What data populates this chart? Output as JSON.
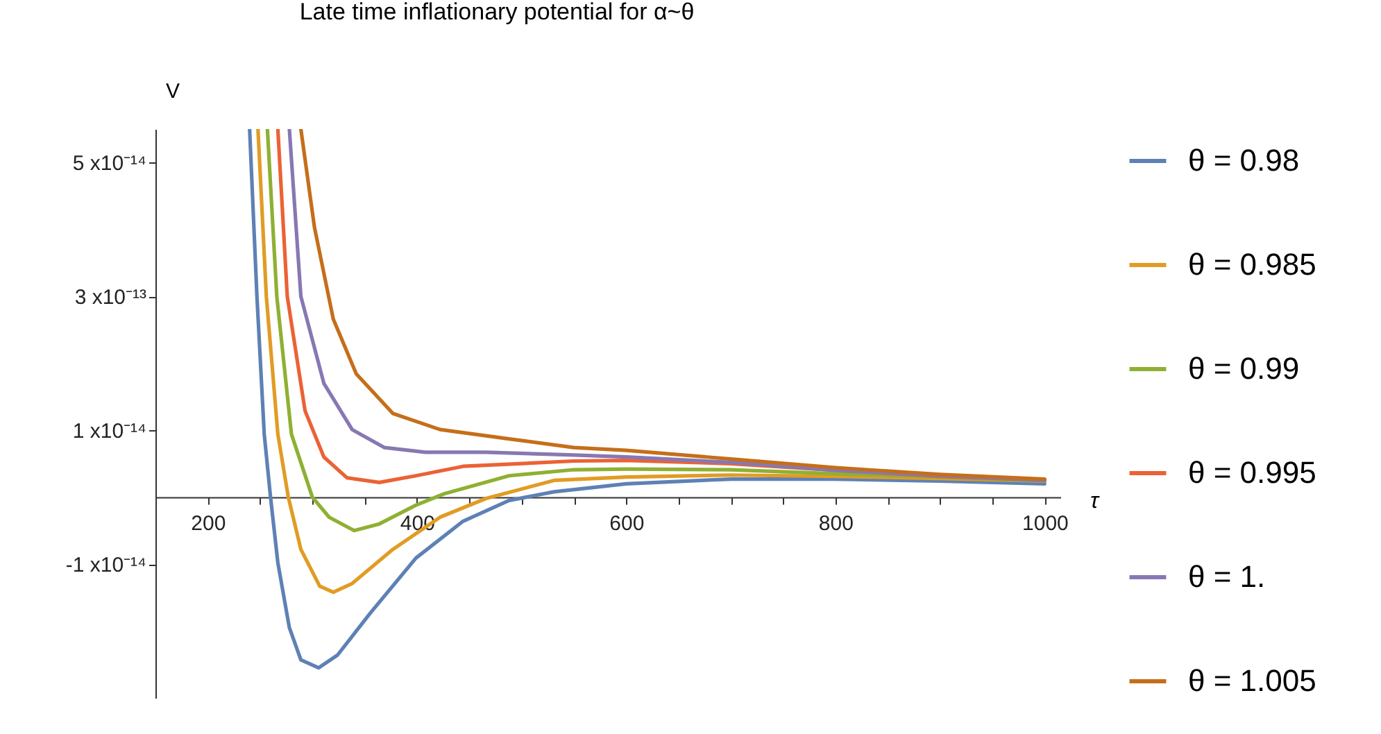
{
  "chart_data": {
    "type": "line",
    "title": "Late time inflationary potential for α~θ",
    "xlabel": "τ",
    "ylabel": "V",
    "xlim": [
      150,
      1015
    ],
    "ylim": [
      -3e-14,
      5.5e-14
    ],
    "xticks": [
      {
        "value": 150,
        "label": null
      },
      200,
      {
        "value": 250,
        "label": null
      },
      {
        "value": 300,
        "label": null
      },
      {
        "value": 350,
        "label": null
      },
      400,
      {
        "value": 450,
        "label": null
      },
      {
        "value": 500,
        "label": null
      },
      {
        "value": 550,
        "label": null
      },
      600,
      {
        "value": 650,
        "label": null
      },
      {
        "value": 700,
        "label": null
      },
      {
        "value": 750,
        "label": null
      },
      800,
      {
        "value": 850,
        "label": null
      },
      {
        "value": 900,
        "label": null
      },
      {
        "value": 950,
        "label": null
      },
      1000
    ],
    "yticks": [
      {
        "value": 5e-14,
        "label": "5 x10⁻¹⁴"
      },
      {
        "value": 3e-14,
        "label": "3 x10⁻¹³"
      },
      {
        "value": 1e-14,
        "label": "1 x10⁻¹⁴"
      },
      {
        "value": -1e-14,
        "label": "-1 x10⁻¹⁴"
      }
    ],
    "grid": false,
    "legend": "right",
    "line_style": "solid",
    "marker": "none",
    "series": [
      {
        "name": "θ = 0.98",
        "color": "#5e81b5",
        "x": [
          240,
          247,
          254,
          260,
          267,
          278,
          289,
          306,
          324,
          355,
          399,
          444,
          488,
          531,
          600,
          700,
          800,
          900,
          1000
        ],
        "values": [
          5.5e-14,
          3e-14,
          9.4e-15,
          0,
          -9.8e-15,
          -1.95e-14,
          -2.43e-14,
          -2.55e-14,
          -2.36e-14,
          -1.74e-14,
          -9.1e-15,
          -3.6e-15,
          -5e-16,
          8e-16,
          2e-15,
          2.7e-15,
          2.7e-15,
          2.4e-15,
          2e-15
        ]
      },
      {
        "name": "θ = 0.985",
        "color": "#e19c24",
        "x": [
          248,
          256,
          267,
          277,
          289,
          307,
          320,
          338,
          377,
          422,
          466,
          531,
          600,
          700,
          800,
          900,
          1000
        ],
        "values": [
          5.5e-14,
          3e-14,
          9.4e-15,
          0,
          -7.8e-15,
          -1.33e-14,
          -1.42e-14,
          -1.29e-14,
          -7.8e-15,
          -3e-15,
          -2e-16,
          2.5e-15,
          3e-15,
          3.3e-15,
          3.1e-15,
          2.8e-15,
          2.4e-15
        ]
      },
      {
        "name": "θ = 0.99",
        "color": "#8fb032",
        "x": [
          257,
          266,
          280,
          300,
          316,
          340,
          364,
          399,
          426,
          488,
          550,
          600,
          700,
          800,
          900,
          1000
        ],
        "values": [
          5.5e-14,
          3e-14,
          9.4e-15,
          0,
          -3e-15,
          -5e-15,
          -4e-15,
          -1.2e-15,
          5e-16,
          3.2e-15,
          4.1e-15,
          4.2e-15,
          4.1e-15,
          3.5e-15,
          3e-15,
          2.4e-15
        ]
      },
      {
        "name": "θ = 0.995",
        "color": "#eb6235",
        "x": [
          267,
          276,
          293,
          311,
          333,
          364,
          399,
          444,
          550,
          600,
          700,
          800,
          900,
          1000
        ],
        "values": [
          5.5e-14,
          3e-14,
          1.29e-14,
          6e-15,
          2.9e-15,
          2.2e-15,
          3.2e-15,
          4.6e-15,
          5.4e-15,
          5.5e-15,
          5e-15,
          4e-15,
          3.1e-15,
          2.5e-15
        ]
      },
      {
        "name": "θ = 1.",
        "color": "#8778b3",
        "x": [
          278,
          289,
          311,
          338,
          369,
          408,
          466,
          550,
          600,
          700,
          800,
          900,
          1000
        ],
        "values": [
          5.5e-14,
          3e-14,
          1.7e-14,
          1.01e-14,
          7.4e-15,
          6.7e-15,
          6.7e-15,
          6.3e-15,
          6e-15,
          5.2e-15,
          4e-15,
          3.2e-15,
          2.5e-15
        ]
      },
      {
        "name": "θ = 1.005",
        "color": "#c56e1a",
        "x": [
          289,
          302,
          320,
          342,
          377,
          422,
          488,
          550,
          600,
          700,
          800,
          900,
          1000
        ],
        "values": [
          5.5e-14,
          4.03e-14,
          2.66e-14,
          1.84e-14,
          1.25e-14,
          1.01e-14,
          8.7e-15,
          7.4e-15,
          7e-15,
          5.7e-15,
          4.4e-15,
          3.4e-15,
          2.7e-15
        ]
      }
    ]
  }
}
